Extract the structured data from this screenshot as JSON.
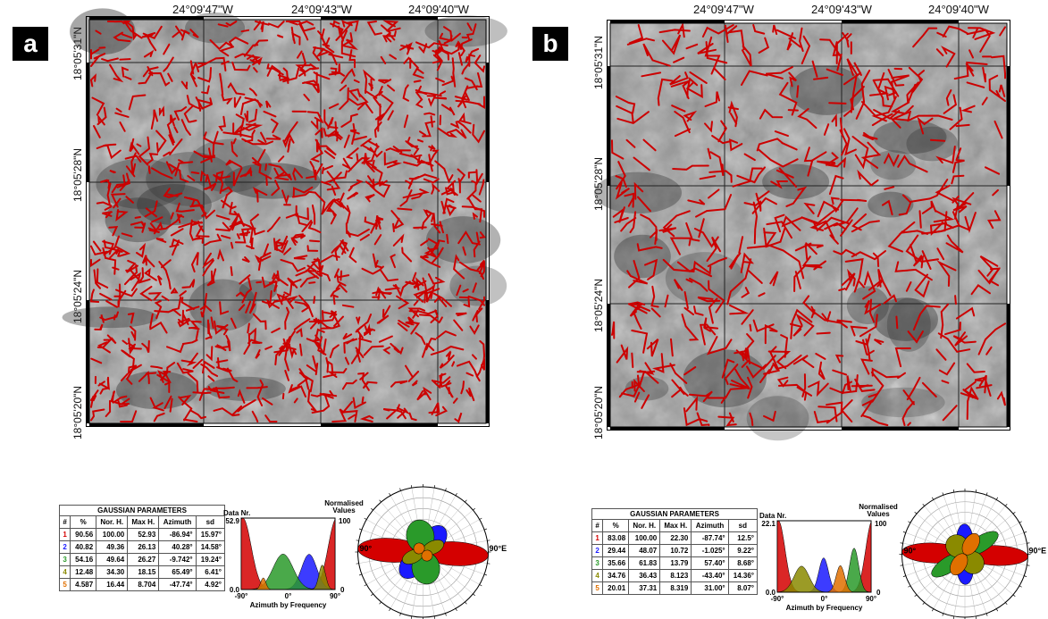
{
  "panels": [
    {
      "label": "a",
      "lon_ticks": [
        "24°09'47\"W",
        "24°09'43\"W",
        "24°09'40\"W"
      ],
      "lat_ticks": [
        "18°05'31\"N",
        "18°05'28\"N",
        "18°05'24\"N",
        "18°05'20\"N"
      ],
      "table": {
        "title": "GAUSSIAN PARAMETERS",
        "headers": [
          "#",
          "%",
          "Nor. H.",
          "Max H.",
          "Azimuth",
          "sd"
        ],
        "rows": [
          [
            "1",
            "90.56",
            "100.00",
            "52.93",
            "-86.94°",
            "15.97°"
          ],
          [
            "2",
            "40.82",
            "49.36",
            "26.13",
            "40.28°",
            "14.58°"
          ],
          [
            "3",
            "54.16",
            "49.64",
            "26.27",
            "-9.742°",
            "19.24°"
          ],
          [
            "4",
            "12.48",
            "34.30",
            "18.15",
            "65.49°",
            "6.41°"
          ],
          [
            "5",
            "4.587",
            "16.44",
            "8.704",
            "-47.74°",
            "4.92°"
          ]
        ],
        "row_colors": [
          "#d40000",
          "#1a1aff",
          "#2a9a2a",
          "#8a8a00",
          "#e07000"
        ]
      },
      "hist": {
        "ylabel_left": "Data Nr.",
        "ylabel_right": "Normalised Values",
        "left_max": "52.9",
        "left_min": "0.0",
        "right_max": "100",
        "right_min": "0",
        "x_ticks": [
          "-90°",
          "0°",
          "90°"
        ],
        "xlabel": "Azimuth by Frequency"
      },
      "rose": {
        "left_label": "90°",
        "right_label": "90°E"
      }
    },
    {
      "label": "b",
      "lon_ticks": [
        "24°09'47\"W",
        "24°09'43\"W",
        "24°09'40\"W"
      ],
      "lat_ticks": [
        "18°05'31\"N",
        "18°05'28\"N",
        "18°05'24\"N",
        "18°05'20\"N"
      ],
      "table": {
        "title": "GAUSSIAN PARAMETERS",
        "headers": [
          "#",
          "%",
          "Nor. H.",
          "Max H.",
          "Azimuth",
          "sd"
        ],
        "rows": [
          [
            "1",
            "83.08",
            "100.00",
            "22.30",
            "-87.74°",
            "12.5°"
          ],
          [
            "2",
            "29.44",
            "48.07",
            "10.72",
            "-1.025°",
            "9.22°"
          ],
          [
            "3",
            "35.66",
            "61.83",
            "13.79",
            "57.40°",
            "8.68°"
          ],
          [
            "4",
            "34.76",
            "36.43",
            "8.123",
            "-43.40°",
            "14.36°"
          ],
          [
            "5",
            "20.01",
            "37.31",
            "8.319",
            "31.00°",
            "8.07°"
          ]
        ],
        "row_colors": [
          "#d40000",
          "#1a1aff",
          "#2a9a2a",
          "#8a8a00",
          "#e07000"
        ]
      },
      "hist": {
        "ylabel_left": "Data Nr.",
        "ylabel_right": "Normalised Values",
        "left_max": "22.1",
        "left_min": "0.0",
        "right_max": "100",
        "right_min": "0",
        "x_ticks": [
          "-90°",
          "0°",
          "90°"
        ],
        "xlabel": "Azimuth by Frequency"
      },
      "rose": {
        "left_label": "90°",
        "right_label": "90°E"
      }
    }
  ]
}
